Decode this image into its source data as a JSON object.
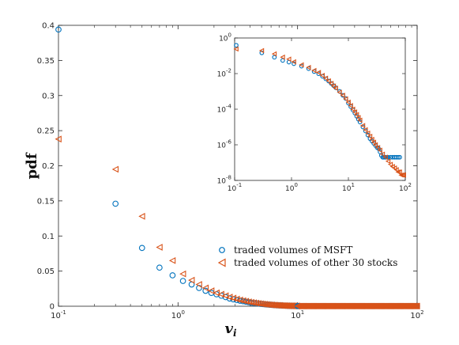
{
  "chart_data": [
    {
      "type": "scatter",
      "role": "main",
      "xscale": "log",
      "yscale": "linear",
      "xlim": [
        0.1,
        100
      ],
      "ylim": [
        0,
        0.4
      ],
      "xticks": [
        {
          "value": 0.1,
          "base": "10",
          "exp": "-1"
        },
        {
          "value": 1,
          "base": "10",
          "exp": "0"
        },
        {
          "value": 10,
          "base": "10",
          "exp": "1"
        },
        {
          "value": 100,
          "base": "10",
          "exp": "2"
        }
      ],
      "yticks": [
        {
          "value": 0,
          "label": "0"
        },
        {
          "value": 0.05,
          "label": "0.05"
        },
        {
          "value": 0.1,
          "label": "0.1"
        },
        {
          "value": 0.15,
          "label": "0.15"
        },
        {
          "value": 0.2,
          "label": "0.2"
        },
        {
          "value": 0.25,
          "label": "0.25"
        },
        {
          "value": 0.3,
          "label": "0.3"
        },
        {
          "value": 0.35,
          "label": "0.35"
        },
        {
          "value": 0.4,
          "label": "0.4"
        }
      ],
      "xlabel_base": "v",
      "xlabel_sub": "i",
      "ylabel": "pdf",
      "legend": {
        "position": "lower-right",
        "entries": [
          {
            "name": "traded volumes of MSFT",
            "marker": "circle",
            "color": "#0072BD"
          },
          {
            "name": "traded volumes of other 30 stocks",
            "marker": "triangle-left",
            "color": "#D95319"
          }
        ]
      },
      "series": [
        {
          "name": "traded volumes of MSFT",
          "marker": "circle",
          "color": "#0072BD",
          "x": [
            0.1,
            0.3,
            0.5,
            0.7,
            0.9,
            1.1,
            1.3,
            1.5,
            1.7,
            1.9,
            2.1,
            2.3,
            2.5,
            2.7,
            2.9,
            3.1,
            3.3,
            3.5,
            3.7,
            3.9,
            4.1,
            4.3,
            4.5,
            4.7,
            4.9,
            5.1,
            5.3,
            5.5,
            5.7,
            5.9,
            6.1,
            6.3,
            6.5,
            6.7,
            6.9,
            7.1,
            7.3,
            7.5,
            7.7,
            7.9,
            8.1,
            8.3,
            8.5,
            8.7,
            8.9,
            9.1,
            9.3,
            9.5,
            9.7,
            9.9
          ],
          "y": [
            0.394,
            0.146,
            0.083,
            0.055,
            0.044,
            0.036,
            0.031,
            0.026,
            0.022,
            0.019,
            0.017,
            0.015,
            0.013,
            0.011,
            0.0098,
            0.0088,
            0.0079,
            0.0071,
            0.0064,
            0.0057,
            0.0051,
            0.0046,
            0.0042,
            0.0038,
            0.0034,
            0.0031,
            0.0028,
            0.0025,
            0.0023,
            0.0021,
            0.0019,
            0.0017,
            0.0016,
            0.0014,
            0.0013,
            0.0012,
            0.0011,
            0.001,
            0.0009,
            0.0008,
            0.0007,
            0.0007,
            0.0006,
            0.0006,
            0.0005,
            0.0005,
            0.0004,
            0.0004,
            0.0004,
            0.0003
          ]
        },
        {
          "name": "traded volumes of other 30 stocks",
          "marker": "triangle-left",
          "color": "#D95319",
          "x": [
            0.1,
            0.3,
            0.5,
            0.7,
            0.9,
            1.1,
            1.3,
            1.5,
            1.7,
            1.9,
            2.1,
            2.3,
            2.5,
            2.7,
            2.9,
            3.1,
            3.3,
            3.5,
            3.7,
            3.9,
            4.1,
            4.3,
            4.5,
            4.7,
            4.9,
            5.1,
            5.3,
            5.5,
            5.7,
            5.9,
            6.1,
            6.3,
            6.5,
            6.7,
            6.9,
            7.1,
            7.3,
            7.5,
            7.7,
            7.9,
            8.1,
            8.3,
            8.5,
            8.7,
            8.9,
            9.1,
            9.3,
            9.5,
            9.7,
            9.9
          ],
          "y": [
            0.238,
            0.195,
            0.128,
            0.084,
            0.065,
            0.046,
            0.037,
            0.031,
            0.026,
            0.022,
            0.019,
            0.017,
            0.015,
            0.013,
            0.0115,
            0.0101,
            0.0089,
            0.0079,
            0.007,
            0.0062,
            0.0055,
            0.0049,
            0.0044,
            0.0039,
            0.0035,
            0.0031,
            0.0028,
            0.0025,
            0.0022,
            0.002,
            0.0018,
            0.0016,
            0.0015,
            0.0013,
            0.0012,
            0.0011,
            0.001,
            0.0009,
            0.0008,
            0.0007,
            0.0007,
            0.0006,
            0.0006,
            0.0005,
            0.0005,
            0.0004,
            0.0004,
            0.0004,
            0.0003,
            0.0003
          ]
        }
      ],
      "tail_bands": [
        {
          "series_index": 0,
          "x_range": [
            10,
            100
          ],
          "y": 0.0002
        },
        {
          "series_index": 1,
          "x_range": [
            10,
            100
          ],
          "y": 0.0002
        }
      ]
    },
    {
      "type": "scatter",
      "role": "inset",
      "position": "top-right",
      "xscale": "log",
      "yscale": "log",
      "xlim": [
        0.1,
        100
      ],
      "ylim": [
        1e-08,
        1
      ],
      "xticks": [
        {
          "value": 0.1,
          "base": "10",
          "exp": "-1"
        },
        {
          "value": 1,
          "base": "10",
          "exp": "0"
        },
        {
          "value": 10,
          "base": "10",
          "exp": "1"
        },
        {
          "value": 100,
          "base": "10",
          "exp": "2"
        }
      ],
      "yticks": [
        {
          "value": 1,
          "base": "10",
          "exp": "0"
        },
        {
          "value": 0.01,
          "base": "10",
          "exp": "-2"
        },
        {
          "value": 0.0001,
          "base": "10",
          "exp": "-4"
        },
        {
          "value": 1e-06,
          "base": "10",
          "exp": "-6"
        },
        {
          "value": 1e-08,
          "base": "10",
          "exp": "-8"
        }
      ],
      "series": [
        {
          "name": "traded volumes of MSFT",
          "marker": "circle",
          "color": "#0072BD",
          "x": [
            0.1,
            0.3,
            0.5,
            0.7,
            0.9,
            1.1,
            1.5,
            2.0,
            2.5,
            3.0,
            3.5,
            4.0,
            4.5,
            5.0,
            5.5,
            6.0,
            7.0,
            8.0,
            9.0,
            10,
            11,
            12,
            13,
            14,
            15,
            16,
            18,
            20,
            22,
            24,
            26,
            28,
            30,
            32,
            34,
            36,
            38,
            40,
            42,
            44,
            46,
            48,
            50,
            55,
            60,
            65,
            70,
            75,
            80
          ],
          "y": [
            0.39,
            0.146,
            0.083,
            0.055,
            0.044,
            0.036,
            0.026,
            0.019,
            0.013,
            0.0098,
            0.0071,
            0.0051,
            0.0038,
            0.0028,
            0.0021,
            0.0016,
            0.001,
            0.0006,
            0.0004,
            0.00022,
            0.00014,
            9e-05,
            6e-05,
            4e-05,
            2.7e-05,
            1.9e-05,
            1e-05,
            6e-06,
            3.5e-06,
            2.2e-06,
            1.6e-06,
            1.2e-06,
            9e-07,
            7e-07,
            6e-07,
            4e-07,
            2.5e-07,
            2e-07,
            2e-07,
            2e-07,
            2e-07,
            2e-07,
            2e-07,
            2e-07,
            2e-07,
            2e-07,
            2e-07,
            2e-07,
            2e-07
          ]
        },
        {
          "name": "traded volumes of other 30 stocks",
          "marker": "triangle-left",
          "color": "#D95319",
          "x": [
            0.1,
            0.3,
            0.5,
            0.7,
            0.9,
            1.1,
            1.5,
            2.0,
            2.5,
            3.0,
            3.5,
            4.0,
            4.5,
            5.0,
            5.5,
            6.0,
            7.0,
            8.0,
            9.0,
            10,
            11,
            12,
            13,
            14,
            15,
            16,
            18,
            20,
            22,
            24,
            26,
            28,
            30,
            33,
            36,
            40,
            45,
            50,
            55,
            60,
            65,
            70,
            75,
            80,
            85,
            90,
            95,
            100
          ],
          "y": [
            0.24,
            0.195,
            0.128,
            0.084,
            0.065,
            0.046,
            0.031,
            0.022,
            0.015,
            0.0115,
            0.0079,
            0.0055,
            0.0039,
            0.0028,
            0.002,
            0.0015,
            0.0009,
            0.0006,
            0.00038,
            0.00025,
            0.00016,
            0.0001,
            7e-05,
            5e-05,
            3.4e-05,
            2.4e-05,
            1.2e-05,
            7e-06,
            4.5e-06,
            3e-06,
            2e-06,
            1.4e-06,
            1e-06,
            7e-07,
            5e-07,
            3e-07,
            2e-07,
            1.2e-07,
            8e-08,
            6e-08,
            5e-08,
            4e-08,
            3e-08,
            3e-08,
            2e-08,
            2e-08,
            2e-08,
            2e-08
          ]
        }
      ]
    }
  ]
}
